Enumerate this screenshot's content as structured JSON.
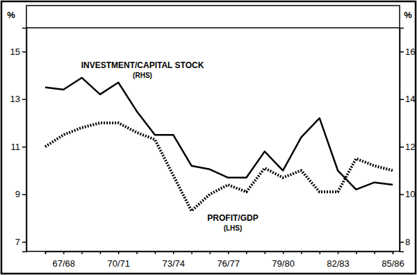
{
  "chart_data": {
    "type": "line",
    "categories": [
      null,
      "67/68",
      null,
      null,
      "70/71",
      null,
      null,
      "73/74",
      null,
      null,
      "76/77",
      null,
      null,
      "79/80",
      null,
      null,
      "82/83",
      null,
      null,
      "85/86"
    ],
    "series": [
      {
        "name": "INVESTMENT/CAPITAL STOCK (RHS)",
        "color": "#000000",
        "line_style": "solid",
        "axis": "y2",
        "values": [
          14.5,
          14.4,
          14.9,
          14.2,
          14.7,
          13.5,
          12.5,
          12.5,
          11.2,
          11.05,
          10.7,
          10.7,
          11.8,
          11.0,
          12.4,
          13.2,
          11.0,
          10.2,
          10.5,
          10.4
        ]
      },
      {
        "name": "PROFIT/GDP (LHS)",
        "color": "#000000",
        "line_style": "dotted",
        "values": [
          11.0,
          11.5,
          11.8,
          12.0,
          12.0,
          11.6,
          11.3,
          9.8,
          8.3,
          9.0,
          9.4,
          9.1,
          10.1,
          9.7,
          10.0,
          9.1,
          9.1,
          10.5,
          10.2,
          10.0
        ]
      }
    ],
    "ylabel": "%",
    "y2label": "%",
    "ylim": [
      6.6,
      16
    ],
    "yticks": [
      7,
      9,
      11,
      13,
      15
    ],
    "y2lim": [
      7.6,
      17
    ],
    "y2ticks": [
      8,
      10,
      12,
      14,
      16
    ]
  }
}
